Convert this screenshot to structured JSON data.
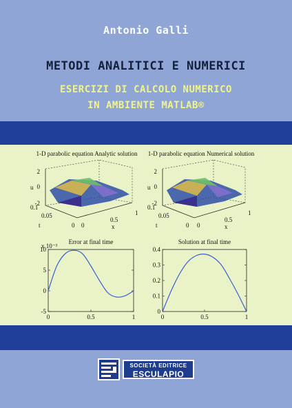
{
  "cover": {
    "author": "Antonio Galli",
    "title": "METODI ANALITICI E NUMERICI",
    "subtitle_line1": "ESERCIZI DI CALCOLO NUMERICO",
    "subtitle_line2": "IN AMBIENTE MATLAB®"
  },
  "colors": {
    "background": "#8ea5d6",
    "band": "#203f9b",
    "panel": "#eaf3c8",
    "subtitle": "#f1f48a",
    "title": "#14213d",
    "curve": "#3a5bd6"
  },
  "plots": {
    "surface_left_title": "1-D parabolic equation Analytic solution",
    "surface_right_title": "1-D parabolic equation Numerical solution",
    "surface_zlabel": "u",
    "surface_tlabel": "t",
    "surface_xlabel": "x",
    "surface_zticks": [
      "2",
      "0",
      "-2"
    ],
    "surface_tticks": [
      "0.1",
      "0.05",
      "0"
    ],
    "surface_xticks": [
      "0",
      "0.5",
      "1"
    ]
  },
  "publisher": {
    "line1": "SOCIETÀ EDITRICE",
    "line2": "ESCULAPIO",
    "icon": "publisher-logo-icon"
  },
  "chart_data": [
    {
      "type": "line",
      "title": "Error at final time",
      "y_multiplier": "x 10⁻³",
      "x": [
        0,
        0.1,
        0.2,
        0.3,
        0.4,
        0.5,
        0.6,
        0.7,
        0.8,
        0.9,
        1.0
      ],
      "values": [
        0,
        6,
        9,
        9.8,
        9,
        6,
        2.5,
        -0.5,
        -1.5,
        -1.2,
        0
      ],
      "xlim": [
        0,
        1
      ],
      "ylim": [
        -5,
        10
      ],
      "xticks": [
        "0",
        "0.5",
        "1"
      ],
      "yticks": [
        "10",
        "5",
        "0",
        "-5"
      ]
    },
    {
      "type": "line",
      "title": "Solution at final time",
      "x": [
        0,
        0.1,
        0.2,
        0.3,
        0.4,
        0.5,
        0.6,
        0.7,
        0.8,
        0.9,
        1.0
      ],
      "values": [
        0,
        0.13,
        0.24,
        0.32,
        0.36,
        0.37,
        0.35,
        0.3,
        0.21,
        0.11,
        0
      ],
      "xlim": [
        0,
        1
      ],
      "ylim": [
        0,
        0.4
      ],
      "xticks": [
        "0",
        "0.5",
        "1"
      ],
      "yticks": [
        "0.4",
        "0.3",
        "0.2",
        "0.1",
        "0"
      ]
    }
  ]
}
